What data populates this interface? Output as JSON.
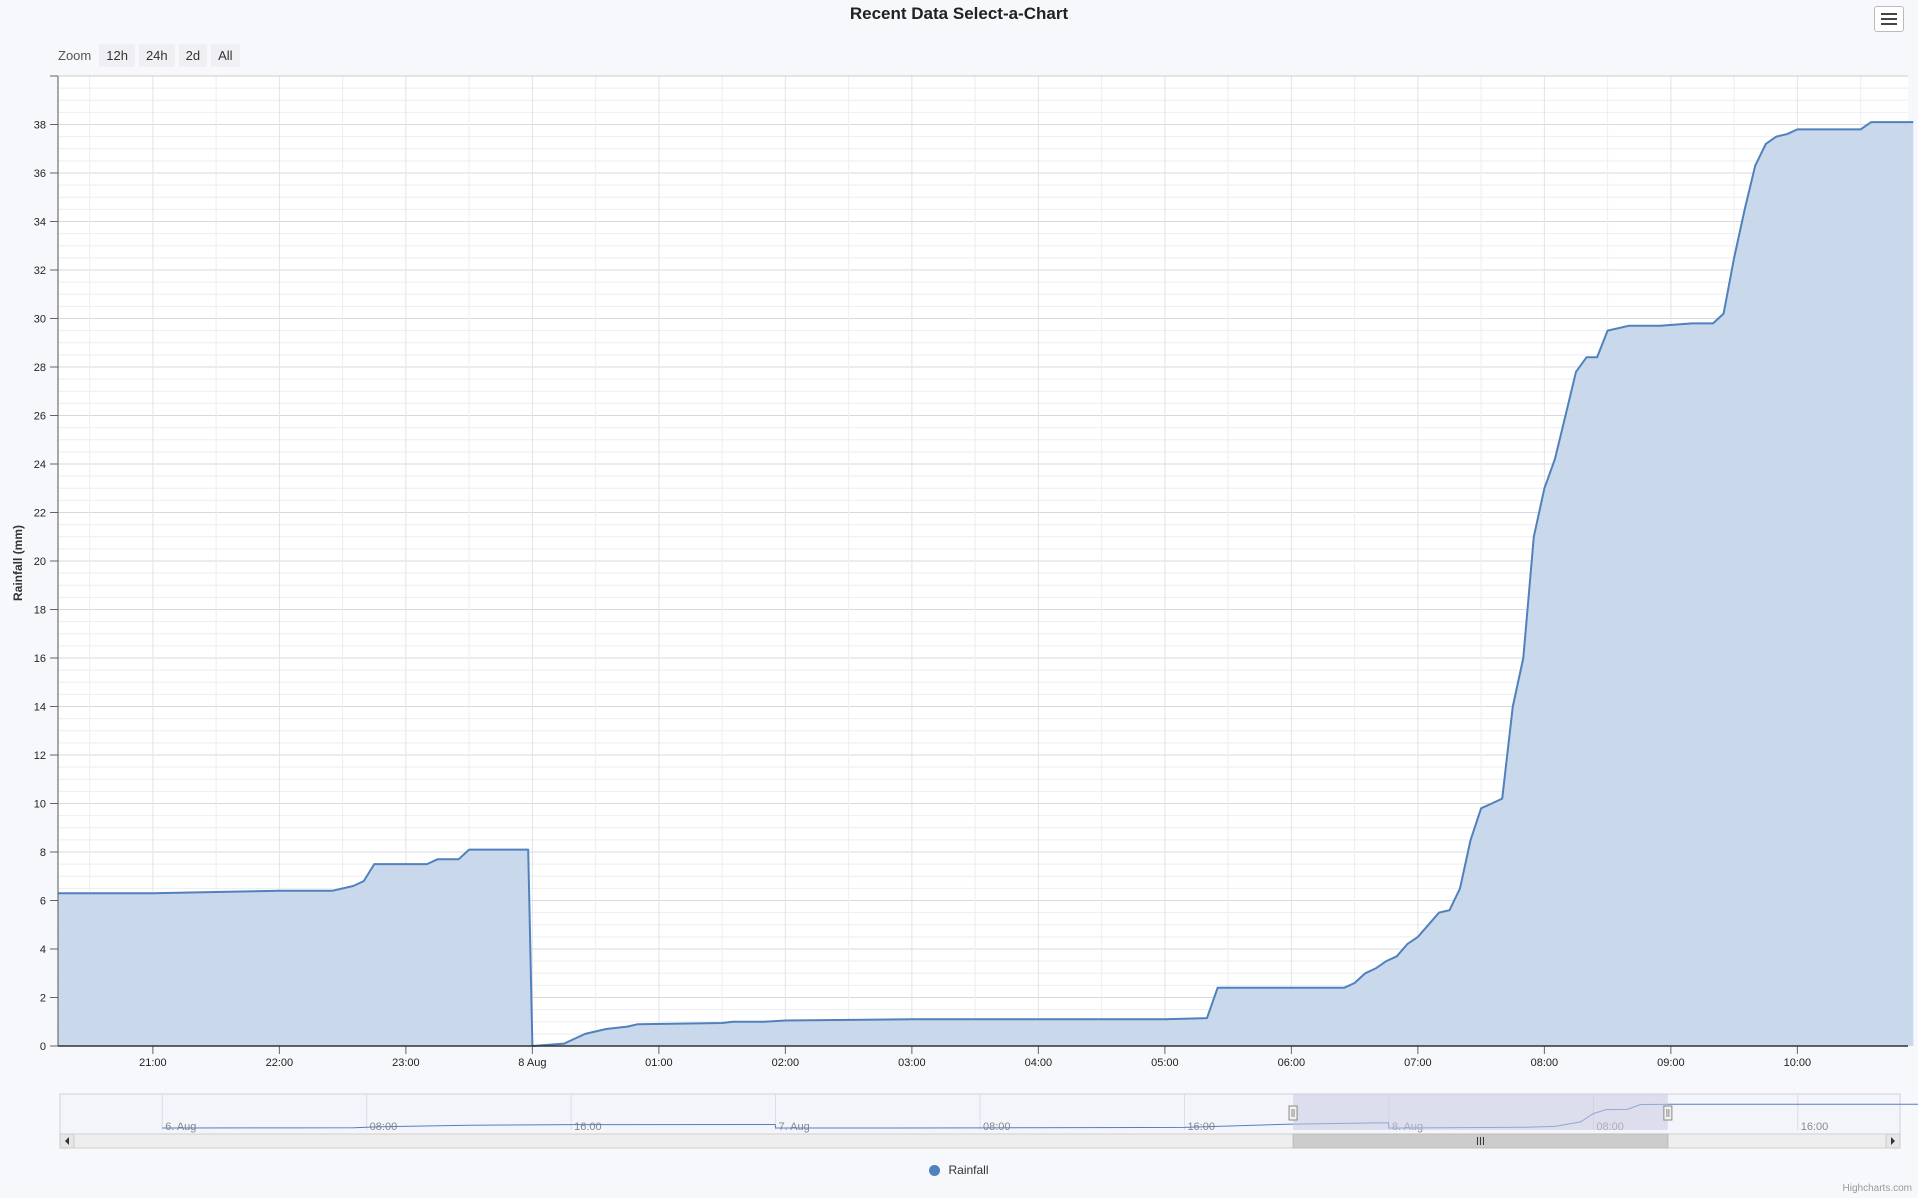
{
  "title": "Recent Data Select-a-Chart",
  "zoom": {
    "label": "Zoom",
    "buttons": [
      "12h",
      "24h",
      "2d",
      "All"
    ]
  },
  "menu_icon": "hamburger-menu-icon",
  "credits": "Highcharts.com",
  "colors": {
    "series": "#4f81bd",
    "fill": "#c6d7ea",
    "navigator_mask": "#c9cbe3"
  },
  "chart_data": {
    "type": "area",
    "title": "Recent Data Select-a-Chart",
    "ylabel": "Rainfall (mm)",
    "xlabel": "",
    "ylim": [
      0,
      40
    ],
    "yticks": [
      0,
      2,
      4,
      6,
      8,
      10,
      12,
      14,
      16,
      18,
      20,
      22,
      24,
      26,
      28,
      30,
      32,
      34,
      36,
      38
    ],
    "xlim": [
      "7 Aug 20:15",
      "8 Aug 10:55"
    ],
    "xticks": [
      "21:00",
      "22:00",
      "23:00",
      "8 Aug",
      "01:00",
      "02:00",
      "03:00",
      "04:00",
      "05:00",
      "06:00",
      "07:00",
      "08:00",
      "09:00",
      "10:00"
    ],
    "grid": true,
    "legend_position": "bottom-center",
    "series": [
      {
        "name": "Rainfall",
        "x": [
          "7 Aug 20:15",
          "7 Aug 21:00",
          "7 Aug 21:30",
          "7 Aug 22:00",
          "7 Aug 22:25",
          "7 Aug 22:35",
          "7 Aug 22:40",
          "7 Aug 22:45",
          "7 Aug 22:50",
          "7 Aug 22:55",
          "7 Aug 23:10",
          "7 Aug 23:15",
          "7 Aug 23:25",
          "7 Aug 23:30",
          "7 Aug 23:58",
          "8 Aug 00:00",
          "8 Aug 00:15",
          "8 Aug 00:25",
          "8 Aug 00:35",
          "8 Aug 00:45",
          "8 Aug 00:50",
          "8 Aug 01:30",
          "8 Aug 01:35",
          "8 Aug 01:50",
          "8 Aug 02:00",
          "8 Aug 03:00",
          "8 Aug 04:00",
          "8 Aug 05:00",
          "8 Aug 05:20",
          "8 Aug 05:25",
          "8 Aug 05:45",
          "8 Aug 06:25",
          "8 Aug 06:30",
          "8 Aug 06:35",
          "8 Aug 06:40",
          "8 Aug 06:45",
          "8 Aug 06:50",
          "8 Aug 06:55",
          "8 Aug 07:00",
          "8 Aug 07:05",
          "8 Aug 07:10",
          "8 Aug 07:15",
          "8 Aug 07:20",
          "8 Aug 07:25",
          "8 Aug 07:30",
          "8 Aug 07:35",
          "8 Aug 07:40",
          "8 Aug 07:45",
          "8 Aug 07:50",
          "8 Aug 07:55",
          "8 Aug 08:00",
          "8 Aug 08:05",
          "8 Aug 08:10",
          "8 Aug 08:15",
          "8 Aug 08:20",
          "8 Aug 08:25",
          "8 Aug 08:30",
          "8 Aug 08:40",
          "8 Aug 08:45",
          "8 Aug 08:55",
          "8 Aug 09:10",
          "8 Aug 09:20",
          "8 Aug 09:25",
          "8 Aug 09:30",
          "8 Aug 09:35",
          "8 Aug 09:40",
          "8 Aug 09:45",
          "8 Aug 09:50",
          "8 Aug 09:55",
          "8 Aug 10:00",
          "8 Aug 10:05",
          "8 Aug 10:20",
          "8 Aug 10:30",
          "8 Aug 10:35",
          "8 Aug 10:55"
        ],
        "values": [
          6.3,
          6.3,
          6.35,
          6.4,
          6.4,
          6.6,
          6.8,
          7.5,
          7.5,
          7.5,
          7.5,
          7.7,
          7.7,
          8.1,
          8.1,
          0.0,
          0.1,
          0.5,
          0.7,
          0.8,
          0.9,
          0.95,
          1.0,
          1.0,
          1.05,
          1.1,
          1.1,
          1.1,
          1.15,
          2.4,
          2.4,
          2.4,
          2.6,
          3.0,
          3.2,
          3.5,
          3.7,
          4.2,
          4.5,
          5.0,
          5.5,
          5.6,
          6.5,
          8.5,
          9.8,
          10.0,
          10.2,
          14.0,
          16.0,
          21.0,
          23.0,
          24.2,
          26.0,
          27.8,
          28.4,
          28.4,
          29.5,
          29.7,
          29.7,
          29.7,
          29.8,
          29.8,
          30.2,
          32.5,
          34.5,
          36.3,
          37.2,
          37.5,
          37.6,
          37.8,
          37.8,
          37.8,
          37.8,
          38.1,
          38.1
        ]
      }
    ],
    "navigator": {
      "labels": [
        "6. Aug",
        "08:00",
        "16:00",
        "7. Aug",
        "08:00",
        "16:00",
        "8. Aug",
        "08:00",
        "16:00"
      ],
      "selected_range": [
        "7 Aug 20:15",
        "8 Aug 10:55"
      ]
    }
  }
}
